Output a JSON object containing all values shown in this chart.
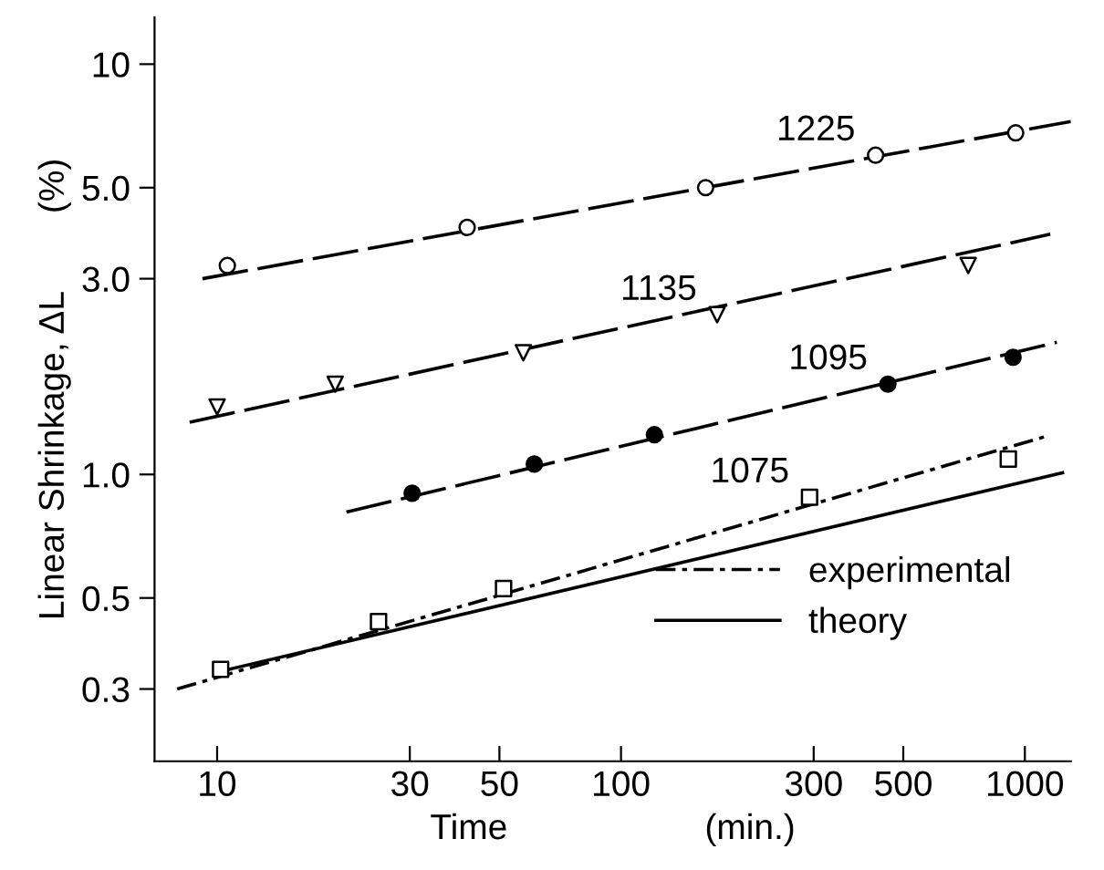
{
  "chart_data": {
    "type": "scatter",
    "xlabel": "Time                    (min.)",
    "ylabel": "Linear Shrinkage, ΔL        (%)",
    "log": "xy",
    "xlim": [
      7,
      1300
    ],
    "ylim": [
      0.2,
      13
    ],
    "xticks": [
      10,
      30,
      50,
      100,
      300,
      500,
      1000
    ],
    "yticks": [
      0.3,
      0.5,
      {
        "value": 1,
        "label": "1.0"
      },
      {
        "value": 3,
        "label": "3.0"
      },
      {
        "value": 5,
        "label": "5.0"
      },
      10
    ],
    "grid": false,
    "legend": "bottom right",
    "series": [
      {
        "name": "1225",
        "marker": "circle",
        "color": "#ffffff",
        "x": [
          10.6,
          41.6,
          162,
          427,
          949
        ],
        "values": [
          3.23,
          4.0,
          5.0,
          6.0,
          6.8
        ]
      },
      {
        "name": "1135",
        "marker": "triangle",
        "color": "#ffffff",
        "x": [
          10,
          19.6,
          57.3,
          173,
          724
        ],
        "values": [
          1.46,
          1.66,
          1.98,
          2.45,
          3.23
        ]
      },
      {
        "name": "1095",
        "marker": "circle",
        "color": "#000000",
        "x": [
          30.4,
          61,
          121,
          458,
          935
        ],
        "values": [
          0.9,
          1.06,
          1.25,
          1.66,
          1.93
        ]
      },
      {
        "name": "1075",
        "marker": "square",
        "color": "#ffffff",
        "x": [
          10.2,
          25.1,
          51.2,
          293,
          910
        ],
        "values": [
          0.335,
          0.438,
          0.527,
          0.88,
          1.09
        ]
      },
      {
        "type": "line",
        "line_style": "dashed",
        "color": "#000000",
        "x": [
          9.2,
          1300
        ],
        "values": [
          3.0,
          7.25
        ]
      },
      {
        "type": "line",
        "line_style": "dashed",
        "color": "#000000",
        "x": [
          8.55,
          1156
        ],
        "values": [
          1.34,
          3.85
        ]
      },
      {
        "type": "line",
        "line_style": "dashed",
        "color": "#000000",
        "x": [
          20.9,
          1200
        ],
        "values": [
          0.81,
          2.1
        ]
      },
      {
        "name": "experimental",
        "type": "line",
        "line_style": "dashdot",
        "color": "#000000",
        "x": [
          7.96,
          1133
        ],
        "values": [
          0.3,
          1.24
        ]
      },
      {
        "name": "theory",
        "type": "line",
        "line_style": "solid",
        "color": "#000000",
        "x": [
          10.7,
          1240
        ],
        "values": [
          0.335,
          1.01
        ]
      }
    ]
  }
}
